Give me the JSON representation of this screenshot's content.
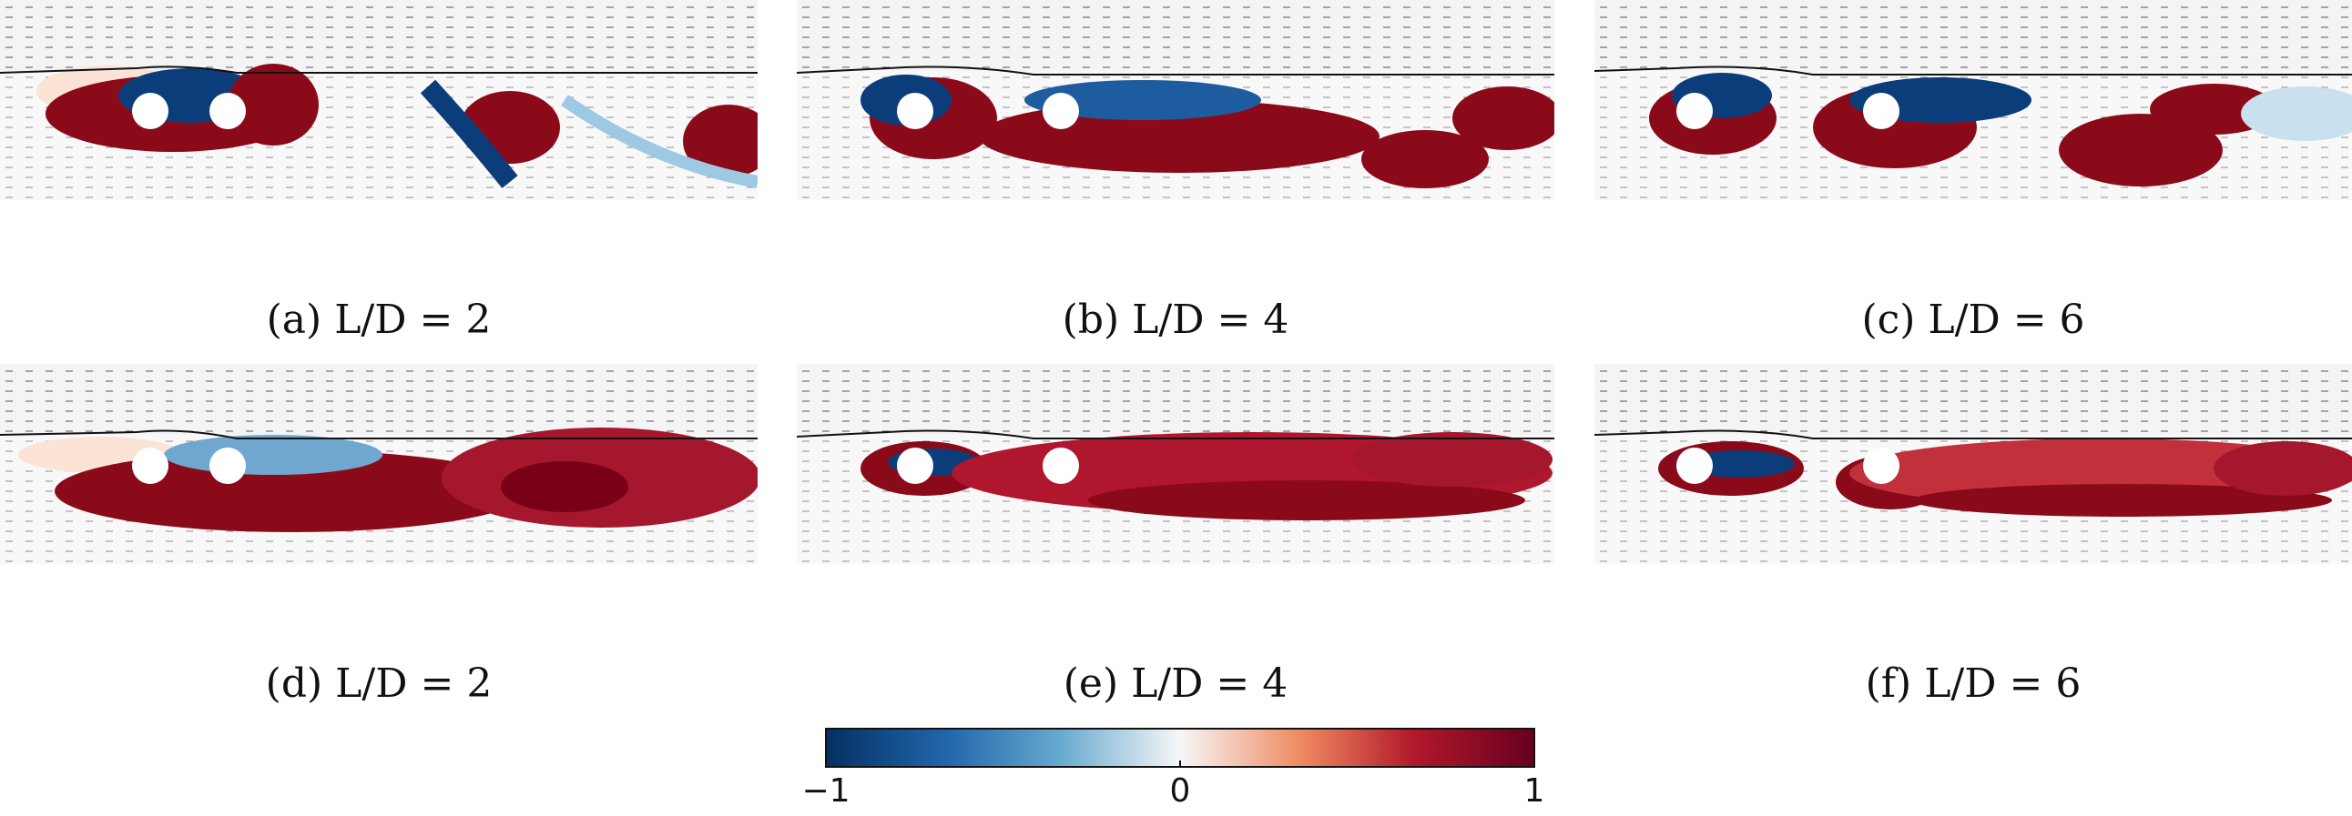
{
  "figure": {
    "panels": [
      {
        "caption": "(a) L/D = 2"
      },
      {
        "caption": "(b) L/D = 4"
      },
      {
        "caption": "(c) L/D = 6"
      },
      {
        "caption": "(d) L/D = 2"
      },
      {
        "caption": "(e) L/D = 4"
      },
      {
        "caption": "(f) L/D = 6"
      }
    ],
    "colorbar": {
      "min_label": "−1",
      "mid_label": "0",
      "max_label": "1",
      "colors": [
        "#053061",
        "#2166ac",
        "#67a9cf",
        "#f7f7f7",
        "#ef8a62",
        "#b2182b",
        "#67001f"
      ]
    }
  }
}
